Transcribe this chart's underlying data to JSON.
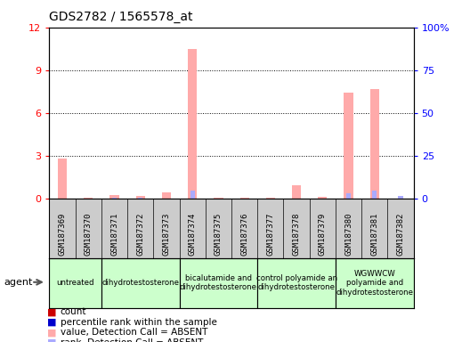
{
  "title": "GDS2782 / 1565578_at",
  "samples": [
    "GSM187369",
    "GSM187370",
    "GSM187371",
    "GSM187372",
    "GSM187373",
    "GSM187374",
    "GSM187375",
    "GSM187376",
    "GSM187377",
    "GSM187378",
    "GSM187379",
    "GSM187380",
    "GSM187381",
    "GSM187382"
  ],
  "absent_value_vals": [
    2.8,
    0.04,
    0.25,
    0.18,
    0.42,
    10.5,
    0.07,
    0.07,
    0.06,
    0.9,
    0.1,
    7.4,
    7.7,
    0.0
  ],
  "absent_rank_vals": [
    0.0,
    0.07,
    0.18,
    0.13,
    0.0,
    4.3,
    0.08,
    0.08,
    0.0,
    0.0,
    0.09,
    3.1,
    4.3,
    1.5
  ],
  "groups": [
    {
      "label": "untreated",
      "start": 0,
      "end": 2,
      "color": "#ccffcc"
    },
    {
      "label": "dihydrotestosterone",
      "start": 2,
      "end": 5,
      "color": "#ccffcc"
    },
    {
      "label": "bicalutamide and\ndihydrotestosterone",
      "start": 5,
      "end": 8,
      "color": "#ccffcc"
    },
    {
      "label": "control polyamide an\ndihydrotestosterone",
      "start": 8,
      "end": 11,
      "color": "#ccffcc"
    },
    {
      "label": "WGWWCW\npolyamide and\ndihydrotestosterone",
      "start": 11,
      "end": 14,
      "color": "#ccffcc"
    }
  ],
  "ylim_left": [
    0,
    12
  ],
  "ylim_right": [
    0,
    100
  ],
  "yticks_left": [
    0,
    3,
    6,
    9,
    12
  ],
  "ytick_labels_left": [
    "0",
    "3",
    "6",
    "9",
    "12"
  ],
  "yticks_right": [
    0,
    25,
    50,
    75,
    100
  ],
  "ytick_labels_right": [
    "0",
    "25",
    "50",
    "75",
    "100%"
  ],
  "color_absent_value": "#ffaaaa",
  "color_absent_rank": "#aaaaff",
  "color_count": "#cc0000",
  "color_percentile": "#0000cc",
  "bg_color": "#cccccc",
  "legend_items": [
    {
      "label": "count",
      "color": "#cc0000"
    },
    {
      "label": "percentile rank within the sample",
      "color": "#0000cc"
    },
    {
      "label": "value, Detection Call = ABSENT",
      "color": "#ffaaaa"
    },
    {
      "label": "rank, Detection Call = ABSENT",
      "color": "#aaaaff"
    }
  ]
}
